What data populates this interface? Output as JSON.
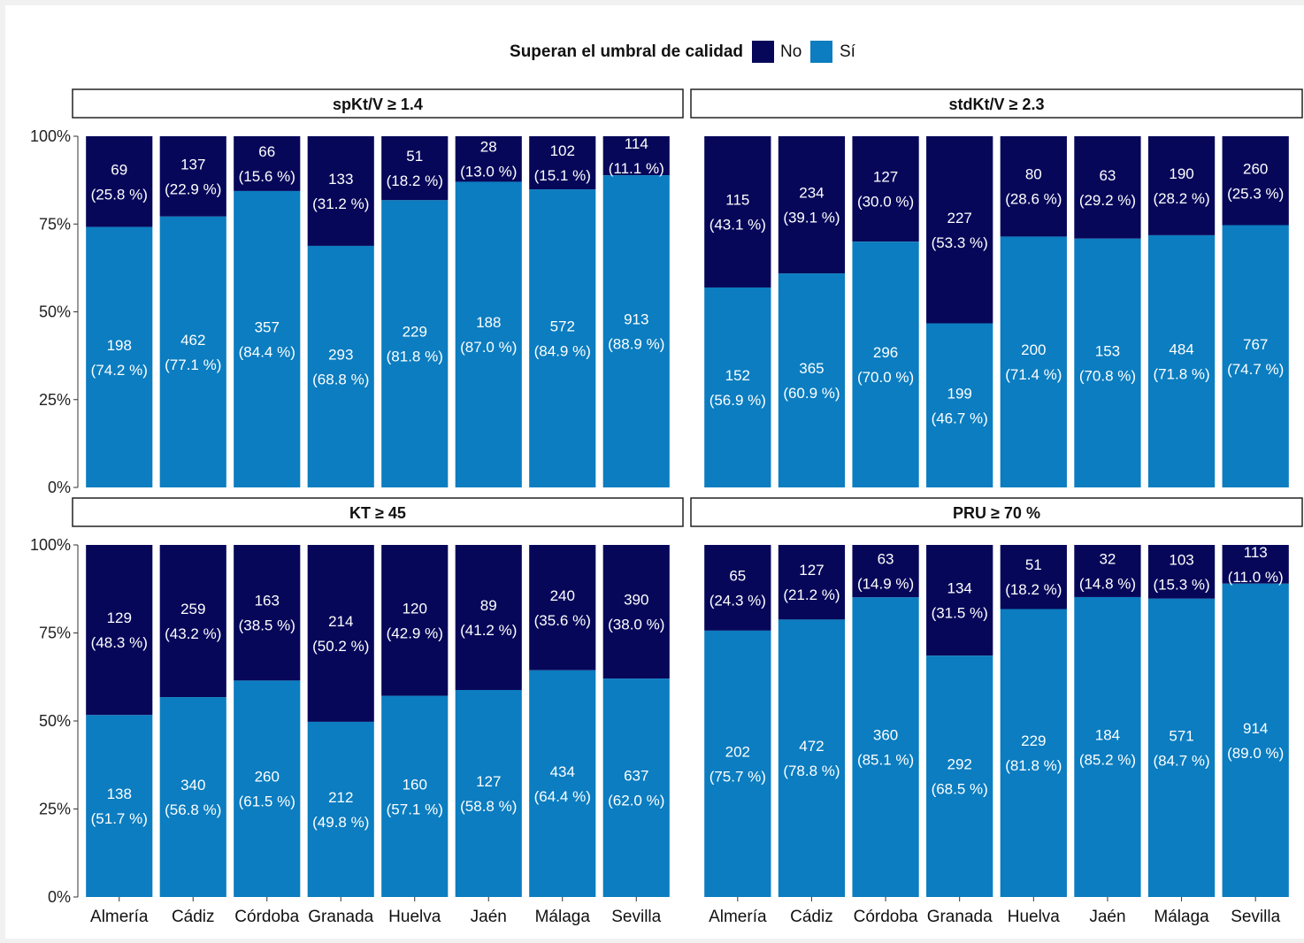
{
  "colors": {
    "no": "#07075a",
    "si": "#0b7dc0"
  },
  "legend": {
    "title": "Superan el umbral de calidad",
    "no_label": "No",
    "si_label": "Sí"
  },
  "y_ticks": [
    "0%",
    "25%",
    "50%",
    "75%",
    "100%"
  ],
  "chart_data": {
    "type": "bar",
    "stacked": true,
    "normalized": true,
    "categories": [
      "Almería",
      "Cádiz",
      "Córdoba",
      "Granada",
      "Huelva",
      "Jaén",
      "Málaga",
      "Sevilla"
    ],
    "ylim": [
      0,
      1
    ],
    "legend_position": "top",
    "facets": [
      {
        "title": "spKt/V ≥ 1.4",
        "no": {
          "counts": [
            69,
            137,
            66,
            133,
            51,
            28,
            102,
            114
          ],
          "pct": [
            "(25.8 %)",
            "(22.9 %)",
            "(15.6 %)",
            "(31.2 %)",
            "(18.2 %)",
            "(13.0 %)",
            "(15.1 %)",
            "(11.1 %)"
          ]
        },
        "si": {
          "counts": [
            198,
            462,
            357,
            293,
            229,
            188,
            572,
            913
          ],
          "pct": [
            "(74.2 %)",
            "(77.1 %)",
            "(84.4 %)",
            "(68.8 %)",
            "(81.8 %)",
            "(87.0 %)",
            "(84.9 %)",
            "(88.9 %)"
          ]
        }
      },
      {
        "title": "stdKt/V ≥ 2.3",
        "no": {
          "counts": [
            115,
            234,
            127,
            227,
            80,
            63,
            190,
            260
          ],
          "pct": [
            "(43.1 %)",
            "(39.1 %)",
            "(30.0 %)",
            "(53.3 %)",
            "(28.6 %)",
            "(29.2 %)",
            "(28.2 %)",
            "(25.3 %)"
          ]
        },
        "si": {
          "counts": [
            152,
            365,
            296,
            199,
            200,
            153,
            484,
            767
          ],
          "pct": [
            "(56.9 %)",
            "(60.9 %)",
            "(70.0 %)",
            "(46.7 %)",
            "(71.4 %)",
            "(70.8 %)",
            "(71.8 %)",
            "(74.7 %)"
          ]
        }
      },
      {
        "title": "KT ≥ 45",
        "no": {
          "counts": [
            129,
            259,
            163,
            214,
            120,
            89,
            240,
            390
          ],
          "pct": [
            "(48.3 %)",
            "(43.2 %)",
            "(38.5 %)",
            "(50.2 %)",
            "(42.9 %)",
            "(41.2 %)",
            "(35.6 %)",
            "(38.0 %)"
          ]
        },
        "si": {
          "counts": [
            138,
            340,
            260,
            212,
            160,
            127,
            434,
            637
          ],
          "pct": [
            "(51.7 %)",
            "(56.8 %)",
            "(61.5 %)",
            "(49.8 %)",
            "(57.1 %)",
            "(58.8 %)",
            "(64.4 %)",
            "(62.0 %)"
          ]
        }
      },
      {
        "title": "PRU ≥ 70 %",
        "no": {
          "counts": [
            65,
            127,
            63,
            134,
            51,
            32,
            103,
            113
          ],
          "pct": [
            "(24.3 %)",
            "(21.2 %)",
            "(14.9 %)",
            "(31.5 %)",
            "(18.2 %)",
            "(14.8 %)",
            "(15.3 %)",
            "(11.0 %)"
          ]
        },
        "si": {
          "counts": [
            202,
            472,
            360,
            292,
            229,
            184,
            571,
            914
          ],
          "pct": [
            "(75.7 %)",
            "(78.8 %)",
            "(85.1 %)",
            "(68.5 %)",
            "(81.8 %)",
            "(85.2 %)",
            "(84.7 %)",
            "(89.0 %)"
          ]
        }
      }
    ]
  }
}
